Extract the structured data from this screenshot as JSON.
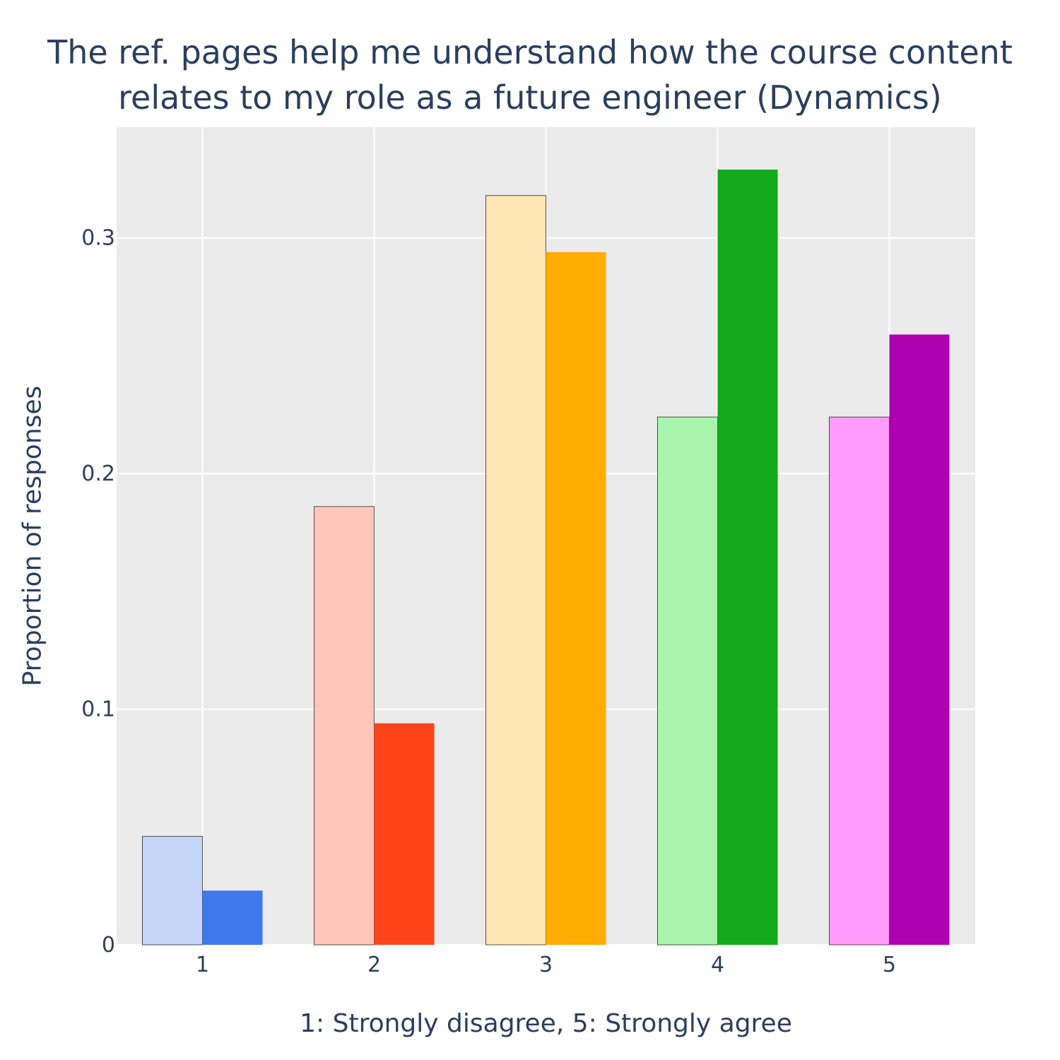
{
  "chart_data": {
    "type": "bar",
    "title_lines": [
      "The ref. pages help me understand how the course content",
      "relates to my role as a future engineer (Dynamics)"
    ],
    "xlabel": "1: Strongly disagree, 5: Strongly agree",
    "ylabel": "Proportion of responses",
    "categories": [
      "1",
      "2",
      "3",
      "4",
      "5"
    ],
    "ylim": [
      0,
      0.347
    ],
    "yticks": [
      0,
      0.1,
      0.2,
      0.3
    ],
    "ytick_labels": [
      "0",
      "0.1",
      "0.2",
      "0.3"
    ],
    "grid": true,
    "legend": "none",
    "series": [
      {
        "values": [
          0.046,
          0.186,
          0.318,
          0.224,
          0.224
        ],
        "colors": [
          "#c5d5f8",
          "#fec6b9",
          "#fee5b4",
          "#aaf5ae",
          "#fe9bfd"
        ],
        "outline": "#2a2a2a"
      },
      {
        "values": [
          0.023,
          0.094,
          0.294,
          0.329,
          0.259
        ],
        "colors": [
          "#3d78ee",
          "#ff4419",
          "#ffac03",
          "#13aa1e",
          "#ae01b0"
        ],
        "outline": "none"
      }
    ],
    "plot_background": "#ebebeb",
    "grid_color": "#ffffff"
  }
}
